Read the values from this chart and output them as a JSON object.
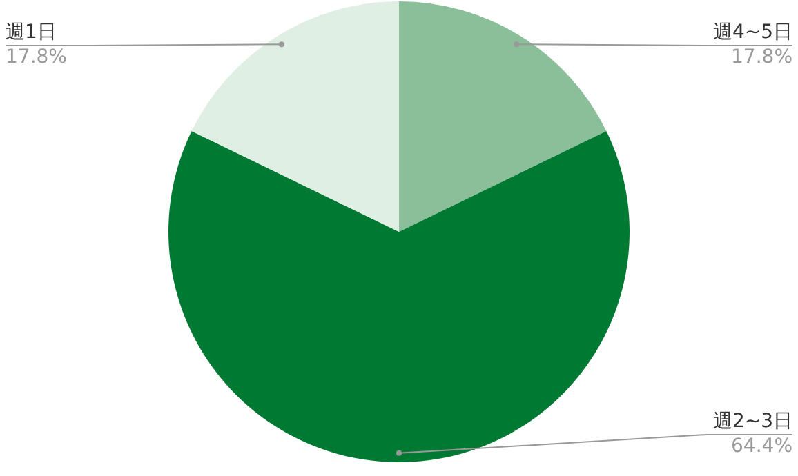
{
  "chart_data": {
    "type": "pie",
    "categories": [
      "週4~5日",
      "週2~3日",
      "週1日"
    ],
    "values": [
      17.8,
      64.4,
      17.8
    ],
    "colors": [
      "#8bbf9a",
      "#007a33",
      "#e0efe4"
    ],
    "value_labels": [
      "17.8%",
      "64.4%",
      "17.8%"
    ],
    "legend": false
  }
}
